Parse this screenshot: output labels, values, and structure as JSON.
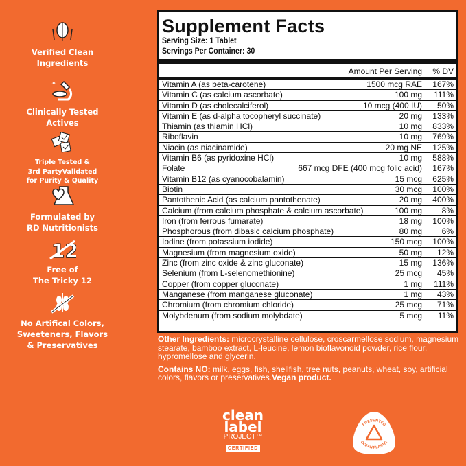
{
  "features": [
    {
      "icon": "hands-leaf-icon",
      "text": [
        "Verified Clean",
        "Ingredients"
      ]
    },
    {
      "icon": "microscope-icon",
      "text": [
        "Clinically Tested",
        "Actives"
      ]
    },
    {
      "icon": "checkmark-papers-icon",
      "text": [
        "Triple Tested &",
        "3rd PartyValidated",
        "for Purity & Quality"
      ]
    },
    {
      "icon": "flask-heart-icon",
      "text": [
        "Formulated by",
        "RD Nutritionists"
      ]
    },
    {
      "icon": "crossed-12-icon",
      "text": [
        "Free of",
        "The Tricky 12"
      ]
    },
    {
      "icon": "crossed-wheat-icon",
      "text": [
        "No Artifical Colors,",
        "Sweeteners, Flavors",
        "& Preservatives"
      ]
    }
  ],
  "facts": {
    "title": "Supplement Facts",
    "serving_size": "Serving Size: 1 Tablet",
    "servings_per_container": "Servings Per Container: 30",
    "col_amount": "Amount Per Serving",
    "col_dv": "% DV",
    "rows": [
      [
        "Vitamin A (as beta-carotene)",
        "1500 mcg RAE",
        "167%"
      ],
      [
        "Vitamin C (as calcium ascorbate)",
        "100 mg",
        "111%"
      ],
      [
        "Vitamin D (as cholecalciferol)",
        "10 mcg (400 IU)",
        "50%"
      ],
      [
        "Vitamin E (as d-alpha tocopheryl succinate)",
        "20 mg",
        "133%"
      ],
      [
        "Thiamin (as thiamin HCl)",
        "10 mg",
        "833%"
      ],
      [
        "Riboflavin",
        "10 mg",
        "769%"
      ],
      [
        "Niacin (as niacinamide)",
        "20 mg NE",
        "125%"
      ],
      [
        "Vitamin B6 (as pyridoxine HCl)",
        "10 mg",
        "588%"
      ],
      [
        "Folate",
        "667 mcg DFE (400 mcg folic acid)",
        "167%"
      ],
      [
        "Vitamin B12 (as cyanocobalamin)",
        "15 mcg",
        "625%"
      ],
      [
        "Biotin",
        "30 mcg",
        "100%"
      ],
      [
        "Pantothenic Acid (as calcium pantothenate)",
        "20 mg",
        "400%"
      ],
      [
        "Calcium (from calcium phosphate & calcium ascorbate)",
        "100 mg",
        "8%"
      ],
      [
        "Iron (from ferrous fumarate)",
        "18 mg",
        "100%"
      ],
      [
        "Phosphorous (from dibasic calcium phosphate)",
        "80 mg",
        "6%"
      ],
      [
        "Iodine (from potassium iodide)",
        "150 mcg",
        "100%"
      ],
      [
        "Magnesium (from magnesium oxide)",
        "50 mg",
        "12%"
      ],
      [
        "Zinc (from zinc oxide & zinc gluconate)",
        "15 mg",
        "136%"
      ],
      [
        "Selenium (from L-selenomethionine)",
        "25 mcg",
        "45%"
      ],
      [
        "Copper (from copper gluconate)",
        "1 mg",
        "111%"
      ],
      [
        "Manganese (from manganese gluconate)",
        "1 mg",
        "43%"
      ],
      [
        "Chromium (from chromium chloride)",
        "25 mcg",
        "71%"
      ],
      [
        "Molybdenum (from sodium molybdate)",
        "5 mcg",
        "11%"
      ]
    ]
  },
  "notes": {
    "other_label": "Other Ingredients:",
    "other_text": " microcrystalline cellulose, croscarmellose sodium, magnesium stearate, bamboo extract, L-leucine, lemon bioflavonoid powder, rice flour, hypromellose and glycerin.",
    "contains_label": "Contains NO:",
    "contains_text": " milk, eggs, fish, shellfish, tree nuts, peanuts, wheat, soy, artificial colors, flavors or preservatives.",
    "vegan": "Vegan product."
  },
  "badges": {
    "clean_label": {
      "line1": "clean",
      "line2": "label",
      "line3": "PROJECT™",
      "line4": "CERTIFIED"
    },
    "ocean": {
      "top": "PREVENTED",
      "bottom": "OCEAN PLASTIC"
    }
  },
  "colors": {
    "background": "#f26a2f",
    "panel": "#ffffff",
    "text": "#111111"
  }
}
